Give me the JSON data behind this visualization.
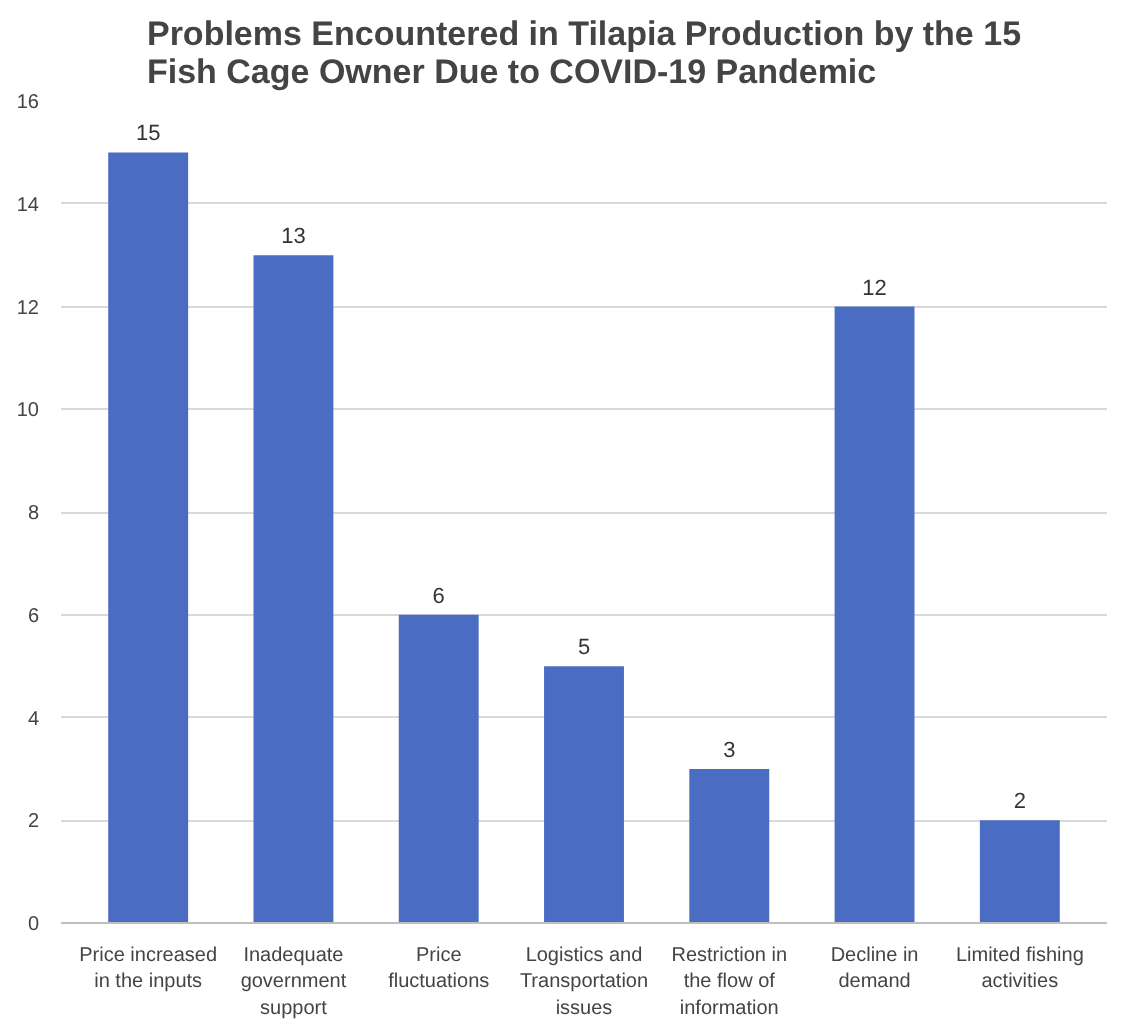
{
  "chart_data": {
    "type": "bar",
    "title": "Problems Encountered in Tilapia Production by the 15 Fish Cage Owner Due to COVID-19 Pandemic",
    "categories": [
      "Price increased in the inputs",
      "Inadequate government support",
      "Price fluctuations",
      "Logistics and Transportation issues",
      "Restriction in the flow of information",
      "Decline in demand",
      "Limited fishing activities"
    ],
    "values": [
      15,
      13,
      6,
      5,
      3,
      12,
      2
    ],
    "color": "#4a6cc2",
    "ylim": [
      0,
      16
    ],
    "yticks": [
      0,
      2,
      4,
      6,
      8,
      10,
      12,
      14,
      16
    ],
    "grid": "y",
    "data_labels": true
  }
}
